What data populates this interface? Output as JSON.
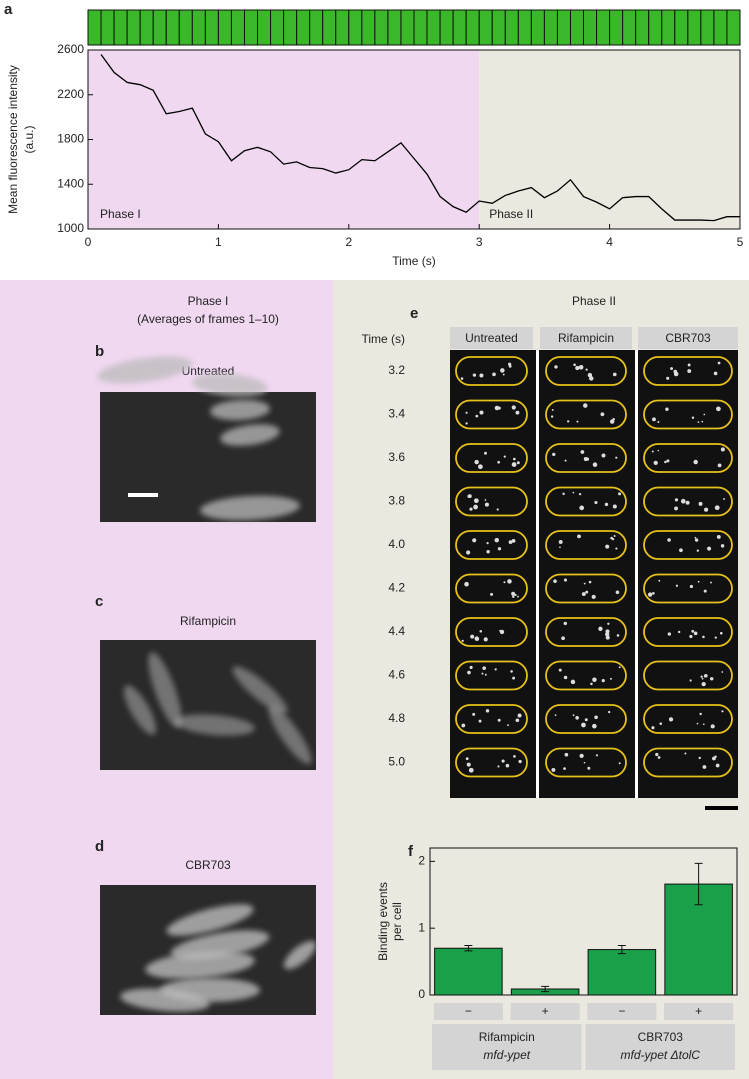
{
  "chart_data": [
    {
      "type": "line",
      "xlabel": "Time (s)",
      "ylabel": [
        "Mean fluorescence intensity",
        "(a.u.)"
      ],
      "x": [
        0.1,
        0.2,
        0.3,
        0.4,
        0.5,
        0.6,
        0.7,
        0.8,
        0.9,
        1.0,
        1.1,
        1.2,
        1.3,
        1.4,
        1.5,
        1.6,
        1.7,
        1.8,
        1.9,
        2.0,
        2.1,
        2.2,
        2.3,
        2.4,
        2.5,
        2.6,
        2.7,
        2.8,
        2.9,
        3.0,
        3.1,
        3.2,
        3.3,
        3.4,
        3.5,
        3.6,
        3.7,
        3.8,
        3.9,
        4.0,
        4.1,
        4.2,
        4.3,
        4.4,
        4.5,
        4.6,
        4.7,
        4.8,
        4.9,
        5.0
      ],
      "values": [
        2560,
        2400,
        2310,
        2290,
        2240,
        2030,
        2050,
        2080,
        1850,
        1780,
        1610,
        1700,
        1730,
        1690,
        1580,
        1600,
        1550,
        1540,
        1500,
        1530,
        1620,
        1610,
        1690,
        1770,
        1630,
        1490,
        1290,
        1200,
        1150,
        1250,
        1230,
        1300,
        1340,
        1370,
        1280,
        1340,
        1440,
        1290,
        1240,
        1180,
        1280,
        1290,
        1290,
        1180,
        1080,
        1080,
        1080,
        1075,
        1110,
        1110
      ],
      "color": "#000000",
      "xlim": [
        0,
        5
      ],
      "xticks": [
        0,
        1,
        2,
        3,
        4,
        5
      ],
      "ylim": [
        1000,
        2600
      ],
      "yticks": [
        1000,
        1400,
        1800,
        2200,
        2600
      ],
      "annotations": [
        "Phase I",
        "Phase II"
      ]
    },
    {
      "type": "bar",
      "ylabel": [
        "Binding events",
        "per cell"
      ],
      "categories": [
        "−",
        "+",
        "−",
        "+"
      ],
      "values": [
        0.7,
        0.09,
        0.68,
        1.66
      ],
      "errors": [
        0.04,
        0.04,
        0.06,
        0.31
      ],
      "groups": [
        {
          "name": "Rifampicin",
          "strain": "mfd-ypet"
        },
        {
          "name": "CBR703",
          "strain": "mfd-ypet ΔtolC"
        }
      ],
      "color": "#1aa04a",
      "ylim": [
        0,
        2.2
      ],
      "yticks": [
        0,
        1,
        2
      ]
    }
  ],
  "panel_labels": [
    "a",
    "b",
    "c",
    "d",
    "e",
    "f"
  ],
  "phase_i": {
    "title": "Phase I",
    "subtitle": "(Averages of frames 1–10)",
    "images": [
      "Untreated",
      "Rifampicin",
      "CBR703"
    ]
  },
  "phase_ii": {
    "title": "Phase II",
    "time_label": "Time (s)",
    "columns": [
      "Untreated",
      "Rifampicin",
      "CBR703"
    ],
    "times": [
      "3.2",
      "3.4",
      "3.6",
      "3.8",
      "4.0",
      "4.2",
      "4.4",
      "4.6",
      "4.8",
      "5.0"
    ]
  }
}
